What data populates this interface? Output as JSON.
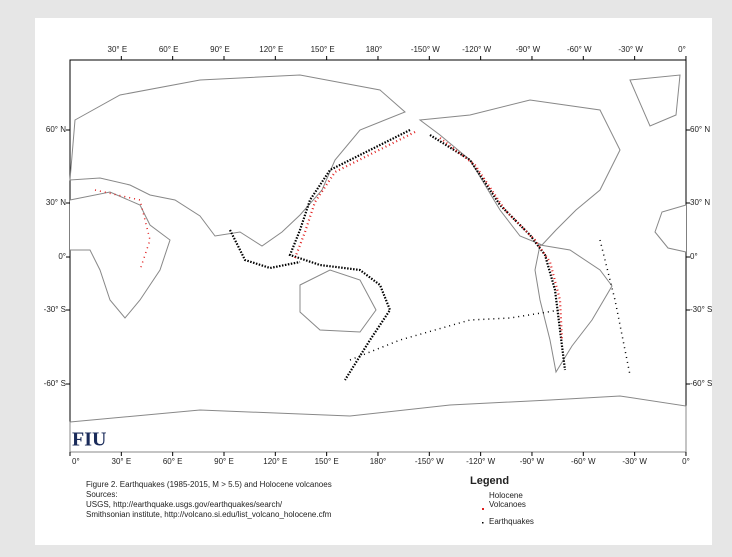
{
  "map": {
    "top_labels": [
      "30° E",
      "60° E",
      "90° E",
      "120° E",
      "150° E",
      "180°",
      "-150° W",
      "-120° W",
      "-90° W",
      "-60° W",
      "-30° W",
      "0°"
    ],
    "bottom_labels": [
      "0°",
      "30° E",
      "60° E",
      "90° E",
      "120° E",
      "150° E",
      "180°",
      "-150° W",
      "-120° W",
      "-90° W",
      "-60° W",
      "-30° W",
      "0°"
    ],
    "left_labels": [
      "60° N",
      "30° N",
      "0°",
      "-30° S",
      "-60° S"
    ],
    "right_labels": [
      "60° N",
      "30° N",
      "0°",
      "-30° S",
      "-60° S"
    ],
    "logo": "FIU"
  },
  "caption": {
    "title": "Figure 2. Earthquakes (1985-2015, M > 5.5) and Holocene volcanoes",
    "sources_heading": "Sources:",
    "sources": [
      "USGS, http://earthquake.usgs.gov/earthquakes/search/",
      "Smithsonian institute, http://volcano.si.edu/list_volcano_holocene.cfm"
    ]
  },
  "legend": {
    "title": "Legend",
    "items": [
      "Holocene Volcanoes",
      "Earthquakes"
    ]
  }
}
